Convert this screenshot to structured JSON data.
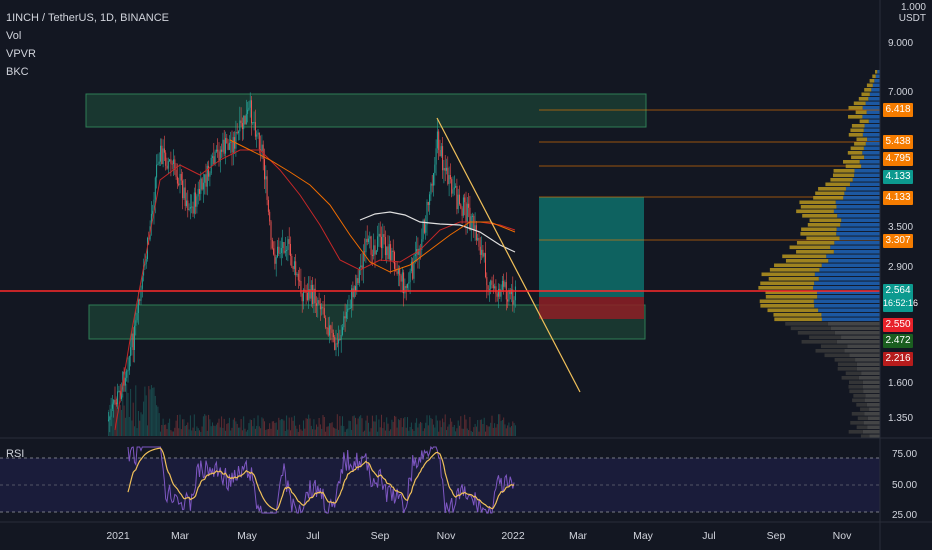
{
  "header": {
    "symbol_line": "1INCH / TetherUS, 1D, BINANCE",
    "indicators": [
      "Vol",
      "VPVR",
      "BKC"
    ]
  },
  "currency": {
    "top": "1.000",
    "unit": "USDT"
  },
  "price_axis": [
    "9.000",
    "7.000",
    "3.500",
    "2.900",
    "1.600",
    "1.350"
  ],
  "badges": [
    {
      "value": "6.418",
      "color": "#f57c00"
    },
    {
      "value": "5.438",
      "color": "#f57c00"
    },
    {
      "value": "4.795",
      "color": "#f57c00"
    },
    {
      "value": "4.133",
      "color": "#0c9a8f"
    },
    {
      "value": "4.133",
      "color": "#f57c00"
    },
    {
      "value": "3.307",
      "color": "#f57c00"
    },
    {
      "value": "2.550",
      "color": "#e8222a"
    },
    {
      "value": "2.472",
      "color": "#1b5e20"
    },
    {
      "value": "2.216",
      "color": "#b71c1c"
    }
  ],
  "current_price": {
    "value": "2.564",
    "countdown": "16:52:16",
    "color": "#0c9a8f"
  },
  "rsi": {
    "label": "RSI",
    "levels": [
      "75.00",
      "50.00",
      "25.00"
    ]
  },
  "time_axis": [
    "2021",
    "Mar",
    "May",
    "Jul",
    "Sep",
    "Nov",
    "2022",
    "Mar",
    "May",
    "Jul",
    "Sep",
    "Nov"
  ],
  "colors": {
    "background": "#131722",
    "up": "#26a69a",
    "down": "#ef5350",
    "price_line": "#ff2a2a",
    "trendline": "#f0c05a",
    "zone": "#1e4d3a"
  }
}
